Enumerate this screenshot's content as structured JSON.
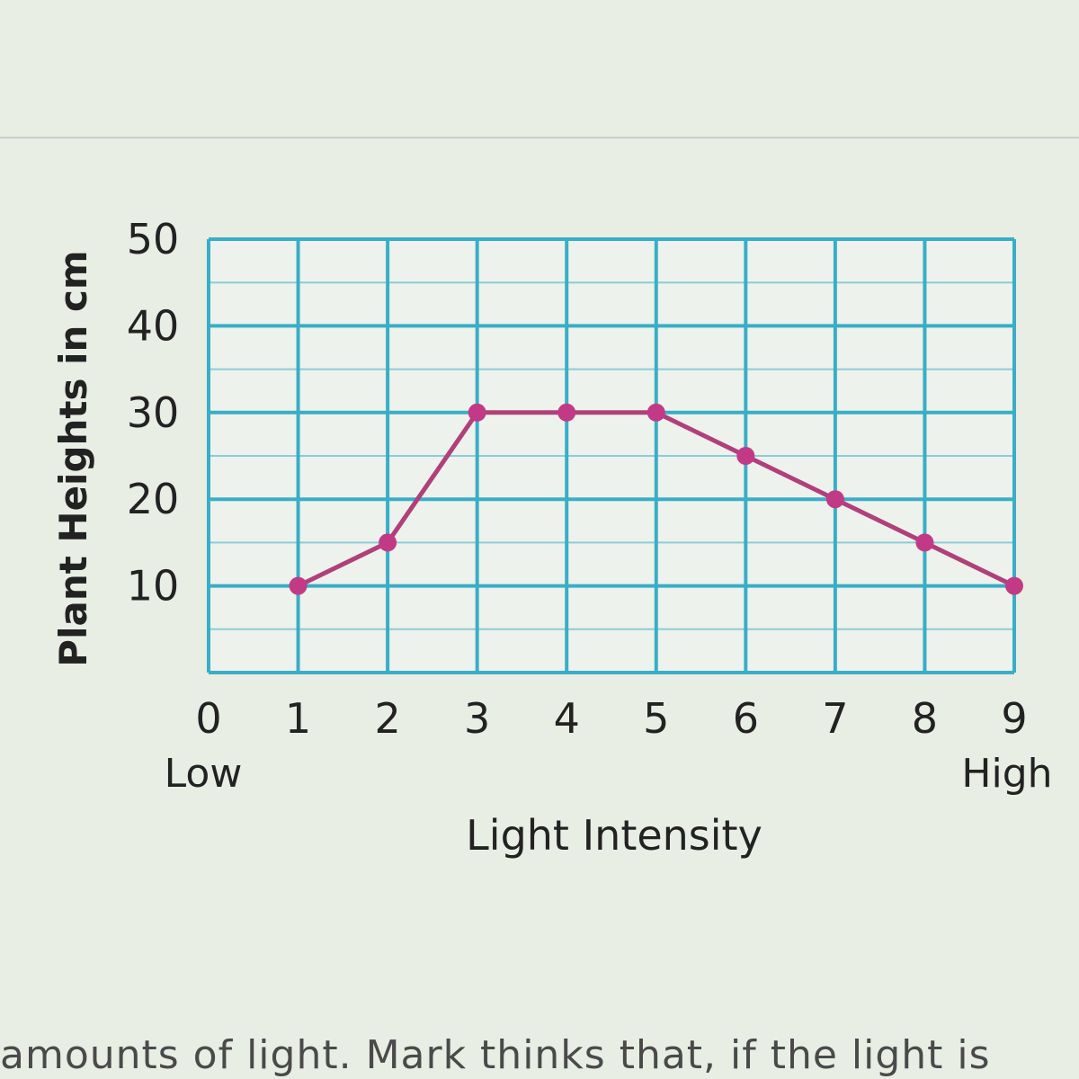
{
  "chart_data": {
    "type": "line",
    "xlabel": "Light Intensity",
    "ylabel": "Plant Heights in cm",
    "x_ticks": [
      "0",
      "1",
      "2",
      "3",
      "4",
      "5",
      "6",
      "7",
      "8",
      "9"
    ],
    "y_ticks": [
      "10",
      "20",
      "30",
      "40",
      "50"
    ],
    "x_end_labels": {
      "low": "Low",
      "high": "High"
    },
    "xlim": [
      0,
      9
    ],
    "ylim": [
      0,
      50
    ],
    "grid": true,
    "series": [
      {
        "x": [
          1,
          2,
          3,
          4,
          5,
          6,
          7,
          8,
          9
        ],
        "y": [
          10,
          15,
          30,
          30,
          30,
          25,
          20,
          15,
          10
        ]
      }
    ],
    "colors": {
      "grid": "#39aec6",
      "line": "#b0407a",
      "marker": "#c23a86"
    }
  },
  "page": {
    "caption": "amounts of light. Mark thinks that, if the light is"
  }
}
